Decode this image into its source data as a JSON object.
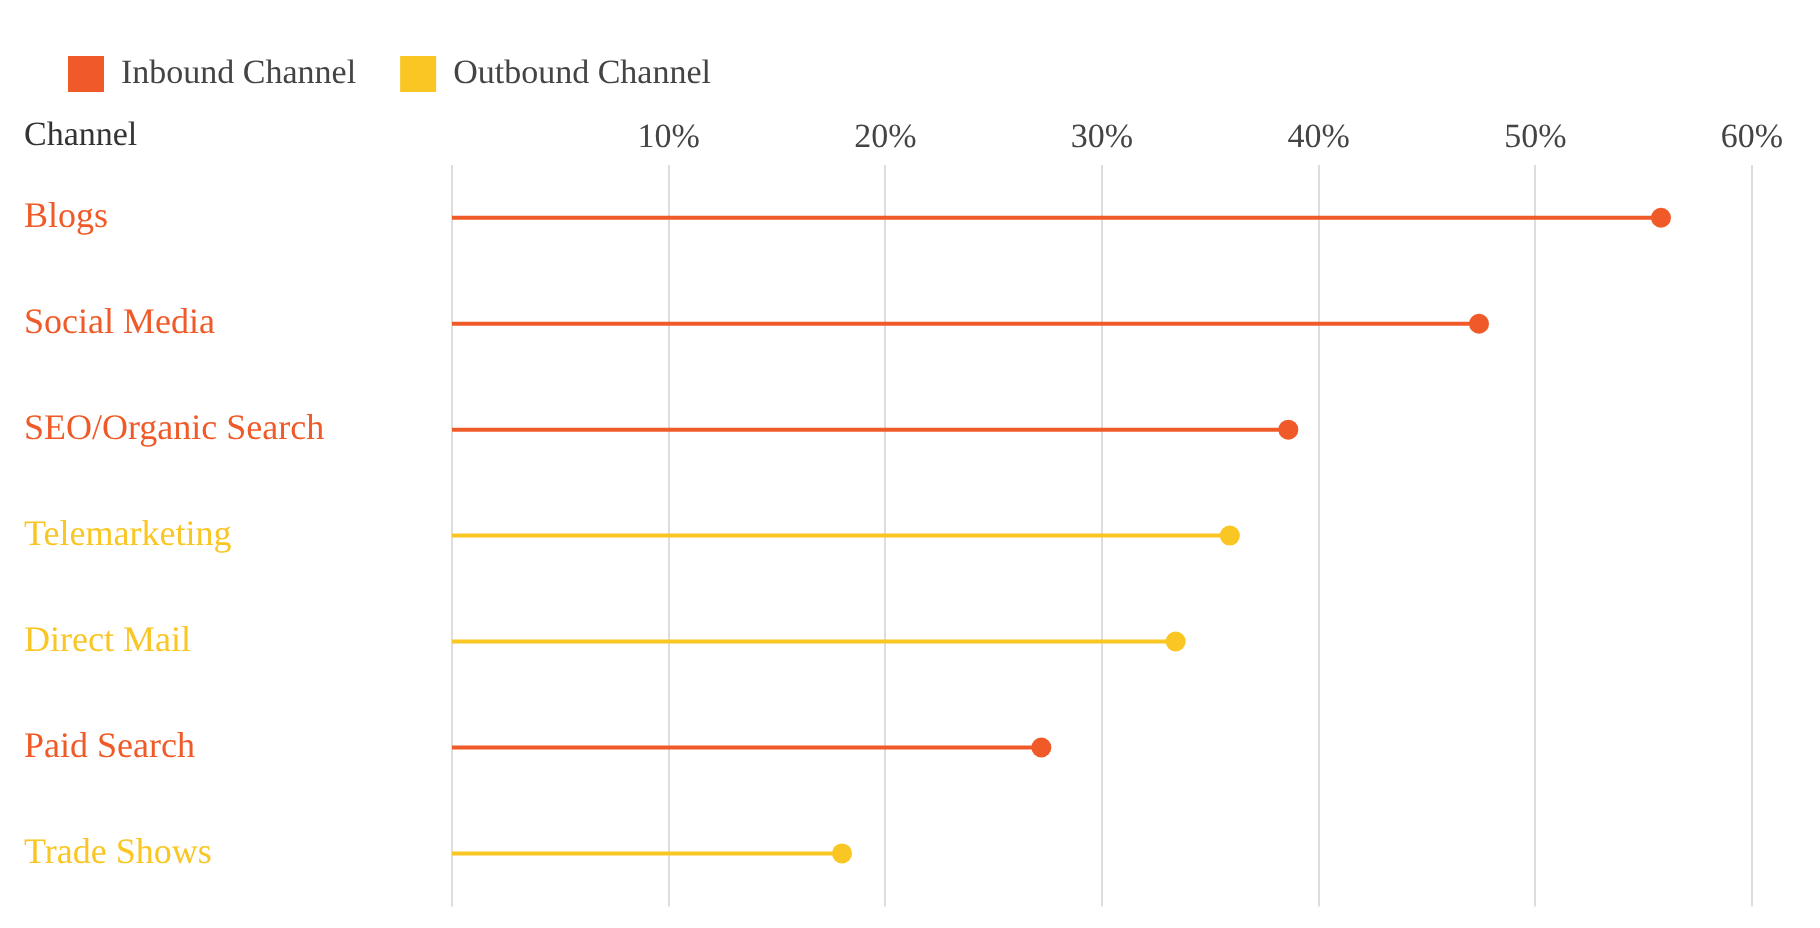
{
  "chart_data": {
    "type": "lollipop",
    "orientation": "horizontal",
    "ylabel": "Channel",
    "categories": [
      "Blogs",
      "Social Media",
      "SEO/Organic Search",
      "Telemarketing",
      "Direct Mail",
      "Paid Search",
      "Trade Shows"
    ],
    "series": [
      {
        "name": "Inbound Channel",
        "color": "#f05a28",
        "values": [
          55.8,
          47.4,
          38.6,
          null,
          null,
          27.2,
          null
        ]
      },
      {
        "name": "Outbound Channel",
        "color": "#f9c623",
        "values": [
          null,
          null,
          null,
          35.9,
          33.4,
          null,
          18
        ]
      }
    ],
    "xlim": [
      0,
      60
    ],
    "xticks": [
      {
        "value": 0,
        "label": null
      },
      {
        "value": 10,
        "label": "10%"
      },
      {
        "value": 20,
        "label": "20%"
      },
      {
        "value": 30,
        "label": "30%"
      },
      {
        "value": 40,
        "label": "40%"
      },
      {
        "value": 50,
        "label": "50%"
      },
      {
        "value": 60,
        "label": "60%"
      }
    ],
    "grid": "x",
    "legend": "top left",
    "marker": "circle"
  }
}
